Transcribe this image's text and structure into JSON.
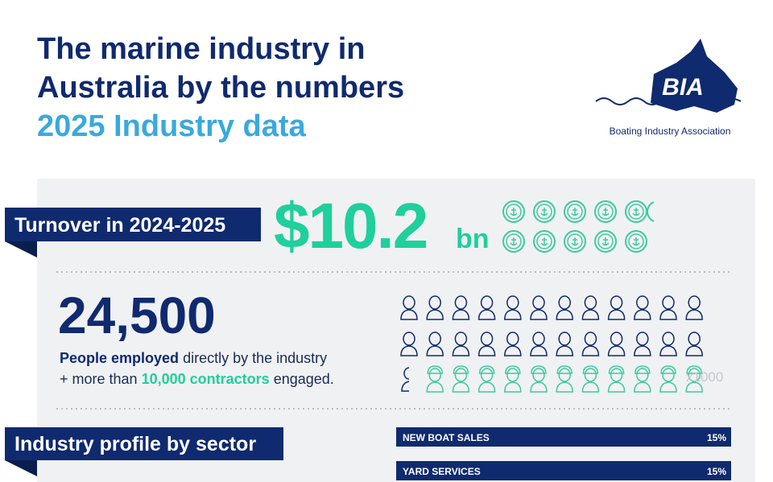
{
  "header": {
    "title_line1": "The marine industry in",
    "title_line2": "Australia by the numbers",
    "subtitle": "2025 Industry data"
  },
  "logo": {
    "mark": "BIA",
    "name": "Boating Industry Association"
  },
  "turnover": {
    "label": "Turnover in 2024-2025",
    "amount": "$10.2",
    "unit": "bn"
  },
  "employment": {
    "number": "24,500",
    "line1_bold": "People employed",
    "line1_rest": "directly by the industry",
    "line2_start": "+ more than",
    "line2_highlight": "10,000 contractors",
    "line2_end": "engaged.",
    "icon_scale": "x1000"
  },
  "sectors": {
    "label": "Industry profile by sector",
    "rows": [
      [
        "NEW BOAT SALES",
        "15%"
      ],
      [
        "YARD SERVICES",
        "15%"
      ]
    ]
  }
}
